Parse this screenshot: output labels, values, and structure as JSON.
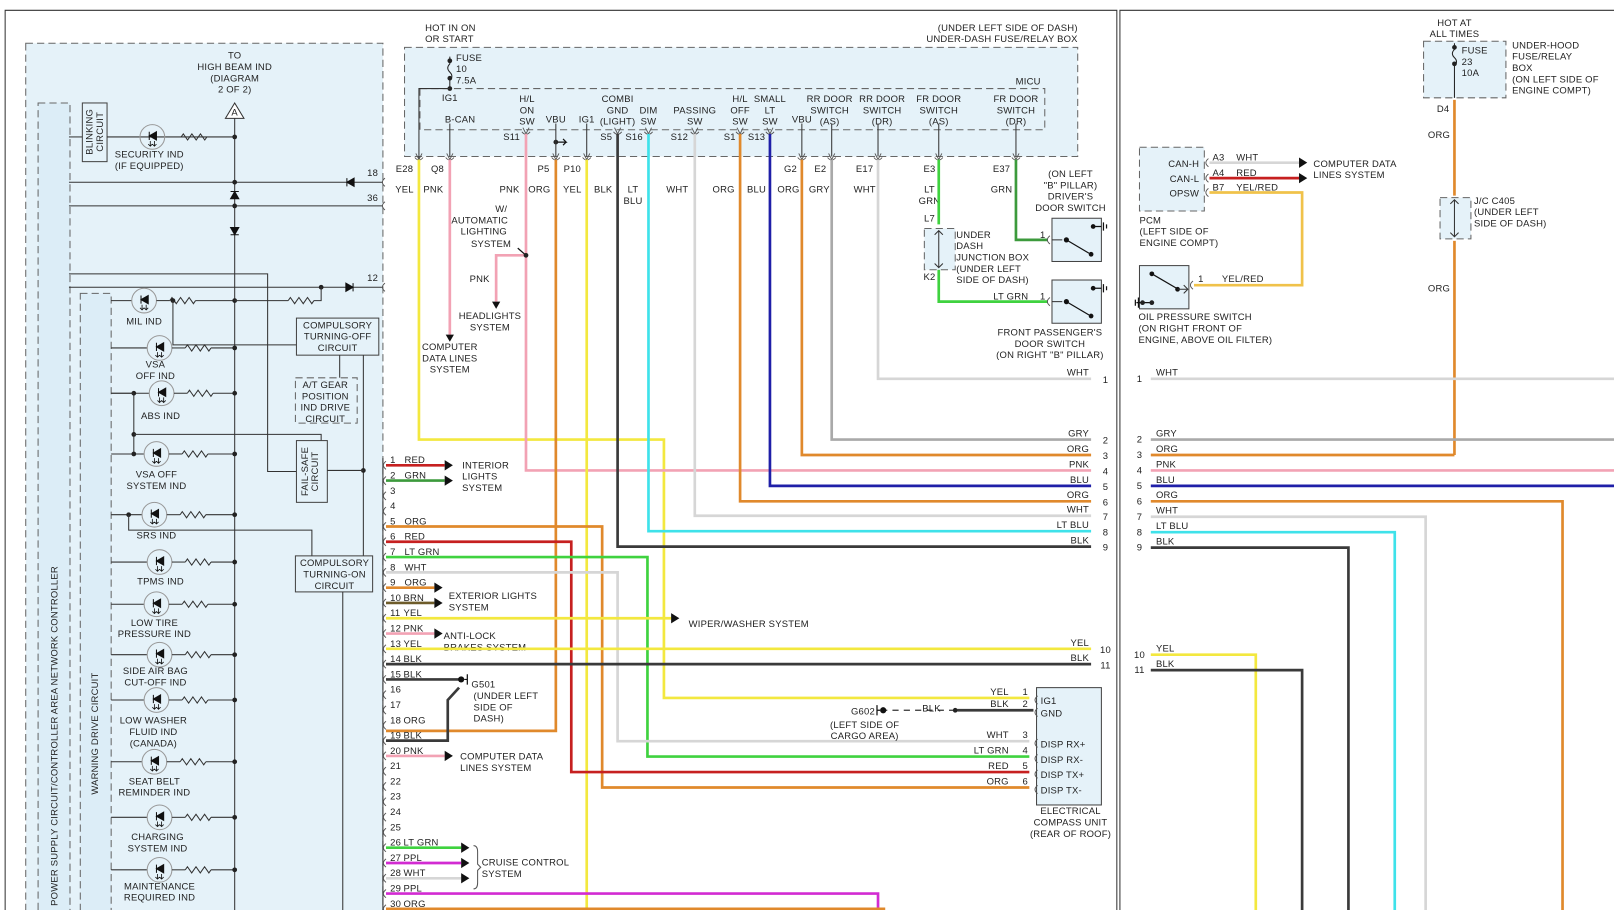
{
  "wire_colors": {
    "YEL": "#f3e83f",
    "PNK": "#f2a2b4",
    "ORG": "#e0892c",
    "BLK": "#3a3a3a",
    "LT BLU": "#3fe2ea",
    "WHT": "#d6d6d6",
    "BLU": "#1f1fa8",
    "GRY": "#a9a9a9",
    "LT GRN": "#3fd23f",
    "GRN": "#3c9a3c",
    "RED": "#c62020",
    "BRN": "#6e5c2a",
    "PPL": "#d22bd2",
    "YEL/RED": "#f0c24a"
  },
  "module_fill": "#e5f2f9",
  "left": {
    "high_beam": [
      "TO",
      "HIGH BEAM IND",
      "(DIAGRAM",
      "2 OF 2)"
    ],
    "connector_a": "A",
    "blinking": [
      "BLINKING",
      "CIRCUIT"
    ],
    "power_supply": "POWER SUPPLY CIRCUIT/CONTROLLER AREA NETWORK CONTROLLER",
    "warning_drive": "WARNING DRIVE CIRCUIT",
    "pin_18": "18",
    "pin_36": "36",
    "pin_12": "12",
    "indicators": [
      {
        "lines": [
          "SECURITY IND",
          "(IF EQUIPPED)"
        ]
      },
      {
        "lines": [
          "MIL IND"
        ]
      },
      {
        "lines": [
          "VSA",
          "OFF IND"
        ]
      },
      {
        "lines": [
          "ABS IND"
        ]
      },
      {
        "lines": [
          "VSA OFF",
          "SYSTEM IND"
        ]
      },
      {
        "lines": [
          "SRS IND"
        ]
      },
      {
        "lines": [
          "TPMS IND"
        ]
      },
      {
        "lines": [
          "LOW TIRE",
          "PRESSURE IND"
        ]
      },
      {
        "lines": [
          "SIDE AIR BAG",
          "CUT-OFF IND"
        ]
      },
      {
        "lines": [
          "LOW WASHER",
          "FLUID IND",
          "(CANADA)"
        ]
      },
      {
        "lines": [
          "SEAT BELT",
          "REMINDER IND"
        ]
      },
      {
        "lines": [
          "CHARGING",
          "SYSTEM IND"
        ]
      },
      {
        "lines": [
          "MAINTENANCE",
          "REQUIRED IND"
        ]
      }
    ],
    "compulsory_off": [
      "COMPULSORY",
      "TURNING-OFF",
      "CIRCUIT"
    ],
    "at_gear": [
      "A/T GEAR",
      "POSITION",
      "IND DRIVE",
      "CIRCUIT"
    ],
    "fail_safe": [
      "FAIL-SAFE",
      "CIRCUIT"
    ],
    "compulsory_on": [
      "COMPULSORY",
      "TURNING-ON",
      "CIRCUIT"
    ]
  },
  "micu": {
    "hot": [
      "HOT IN ON",
      "OR START"
    ],
    "location": "(UNDER LEFT SIDE OF DASH)",
    "name": "UNDER-DASH FUSE/RELAY BOX",
    "fuse": [
      "FUSE",
      "10",
      "7.5A"
    ],
    "module": "MICU",
    "terminals": [
      {
        "label": [
          "IG1"
        ],
        "conn": "E28",
        "color": "YEL"
      },
      {
        "label": [
          "B-CAN"
        ],
        "conn": "Q8",
        "color": "PNK"
      },
      {
        "label": [
          "H/L",
          "ON",
          "SW"
        ],
        "conn": "S11",
        "color": "PNK"
      },
      {
        "label": [
          "VBU"
        ],
        "conn": "P5",
        "color": "ORG"
      },
      {
        "label": [
          "IG1"
        ],
        "conn": "P10",
        "color": "YEL"
      },
      {
        "label": [
          "COMBI",
          "GND",
          "(LIGHT)"
        ],
        "conn": "S5",
        "color": "BLK"
      },
      {
        "label": [
          "DIM",
          "SW"
        ],
        "conn": "S16",
        "color": "LT BLU"
      },
      {
        "label": [
          "PASSING",
          "SW"
        ],
        "conn": "S12",
        "color": "WHT"
      },
      {
        "label": [
          "H/L",
          "OFF",
          "SW"
        ],
        "conn": "S1",
        "color": "ORG"
      },
      {
        "label": [
          "SMALL",
          "LT",
          "SW"
        ],
        "conn": "S13",
        "color": "BLU"
      },
      {
        "label": [
          "VBU"
        ],
        "conn": "G2",
        "color": "ORG"
      },
      {
        "label": [
          "RR DOOR",
          "SWITCH",
          "(AS)"
        ],
        "conn": "E2",
        "color": "GRY"
      },
      {
        "label": [
          "RR DOOR",
          "SWITCH",
          "(DR)"
        ],
        "conn": "E17",
        "color": "WHT"
      },
      {
        "label": [
          "FR DOOR",
          "SWITCH",
          "(AS)"
        ],
        "conn": "E3",
        "color": "LT GRN"
      },
      {
        "label": [
          "FR DOOR",
          "SWITCH",
          "(DR)"
        ],
        "conn": "E37",
        "color": "GRN"
      }
    ],
    "lt_blu_lines": [
      "LT",
      "BLU"
    ],
    "lt_grn_lines": [
      "LT",
      "GRN"
    ]
  },
  "auto_lighting": {
    "lines": [
      "W/",
      "AUTOMATIC",
      "LIGHTING",
      "SYSTEM"
    ],
    "branch_color": "PNK",
    "dest": [
      "HEADLIGHTS",
      "SYSTEM"
    ]
  },
  "bcan_dest": [
    "COMPUTER",
    "DATA LINES",
    "SYSTEM"
  ],
  "connector_pins": [
    {
      "pin": "1",
      "color": "RED"
    },
    {
      "pin": "2",
      "color": "GRN"
    },
    {
      "pin": "3",
      "color": ""
    },
    {
      "pin": "4",
      "color": ""
    },
    {
      "pin": "5",
      "color": "ORG"
    },
    {
      "pin": "6",
      "color": "RED"
    },
    {
      "pin": "7",
      "color": "LT GRN"
    },
    {
      "pin": "8",
      "color": "WHT"
    },
    {
      "pin": "9",
      "color": "ORG"
    },
    {
      "pin": "10",
      "color": "BRN"
    },
    {
      "pin": "11",
      "color": "YEL"
    },
    {
      "pin": "12",
      "color": "PNK"
    },
    {
      "pin": "13",
      "color": "YEL"
    },
    {
      "pin": "14",
      "color": "BLK"
    },
    {
      "pin": "15",
      "color": "BLK"
    },
    {
      "pin": "16",
      "color": ""
    },
    {
      "pin": "17",
      "color": ""
    },
    {
      "pin": "18",
      "color": "ORG"
    },
    {
      "pin": "19",
      "color": "BLK"
    },
    {
      "pin": "20",
      "color": "PNK"
    },
    {
      "pin": "21",
      "color": ""
    },
    {
      "pin": "22",
      "color": ""
    },
    {
      "pin": "23",
      "color": ""
    },
    {
      "pin": "24",
      "color": ""
    },
    {
      "pin": "25",
      "color": ""
    },
    {
      "pin": "26",
      "color": "LT GRN"
    },
    {
      "pin": "27",
      "color": "PPL"
    },
    {
      "pin": "28",
      "color": "WHT"
    },
    {
      "pin": "29",
      "color": "PPL"
    },
    {
      "pin": "30",
      "color": "ORG"
    }
  ],
  "destinations": {
    "interior_lights": [
      "INTERIOR",
      "LIGHTS",
      "SYSTEM"
    ],
    "exterior_lights": [
      "EXTERIOR LIGHTS",
      "SYSTEM"
    ],
    "wiper_washer": "WIPER/WASHER SYSTEM",
    "anti_lock": [
      "ANTI-LOCK",
      "BRAKES SYSTEM"
    ],
    "computer_data": [
      "COMPUTER DATA",
      "LINES SYSTEM"
    ],
    "cruise_control": [
      "CRUISE CONTROL",
      "SYSTEM"
    ]
  },
  "g501": {
    "name": "G501",
    "location": [
      "(UNDER LEFT",
      "SIDE OF",
      "DASH)"
    ]
  },
  "g602": {
    "name": "G602",
    "location": [
      "(LEFT SIDE OF",
      "CARGO AREA)"
    ],
    "color": "BLK"
  },
  "junction": {
    "in": "L7",
    "out": "K2",
    "lines": [
      "UNDER",
      "DASH",
      "JUNCTION BOX",
      "(UNDER LEFT",
      "SIDE OF DASH)"
    ],
    "color_out": "LT GRN"
  },
  "driver_switch": {
    "pin": "1",
    "lines": [
      "(ON LEFT",
      "\"B\" PILLAR)",
      "DRIVER'S",
      "DOOR SWITCH"
    ]
  },
  "passenger_switch": {
    "pin": "1",
    "lines": [
      "FRONT PASSENGER'S",
      "DOOR SWITCH",
      "(ON RIGHT \"B\" PILLAR)"
    ]
  },
  "compass": {
    "pins": [
      {
        "pin": "1",
        "color": "YEL",
        "label": "IG1"
      },
      {
        "pin": "2",
        "color": "BLK",
        "label": "GND"
      },
      {
        "pin": "3",
        "color": "WHT",
        "label": "DISP RX+"
      },
      {
        "pin": "4",
        "color": "LT GRN",
        "label": "DISP RX-"
      },
      {
        "pin": "5",
        "color": "RED",
        "label": "DISP TX+"
      },
      {
        "pin": "6",
        "color": "ORG",
        "label": "DISP TX-"
      }
    ],
    "name": [
      "ELECTRICAL",
      "COMPASS UNIT",
      "(REAR OF ROOF)"
    ]
  },
  "harness_out": [
    {
      "pin": "1",
      "color": "WHT"
    },
    {
      "pin": "2",
      "color": "GRY"
    },
    {
      "pin": "3",
      "color": "ORG"
    },
    {
      "pin": "4",
      "color": "PNK"
    },
    {
      "pin": "5",
      "color": "BLU"
    },
    {
      "pin": "6",
      "color": "ORG"
    },
    {
      "pin": "7",
      "color": "WHT"
    },
    {
      "pin": "8",
      "color": "LT BLU"
    },
    {
      "pin": "9",
      "color": "BLK"
    },
    {
      "pin": "10",
      "color": "YEL"
    },
    {
      "pin": "11",
      "color": "BLK"
    }
  ],
  "harness_in": [
    {
      "pin": "1",
      "color": "WHT"
    },
    {
      "pin": "2",
      "color": "GRY"
    },
    {
      "pin": "3",
      "color": "ORG"
    },
    {
      "pin": "4",
      "color": "PNK"
    },
    {
      "pin": "5",
      "color": "BLU"
    },
    {
      "pin": "6",
      "color": "ORG"
    },
    {
      "pin": "7",
      "color": "WHT"
    },
    {
      "pin": "8",
      "color": "LT BLU"
    },
    {
      "pin": "9",
      "color": "BLK"
    },
    {
      "pin": "10",
      "color": "YEL"
    },
    {
      "pin": "11",
      "color": "BLK"
    }
  ],
  "right": {
    "hot": [
      "HOT AT",
      "ALL TIMES"
    ],
    "fuse": [
      "FUSE",
      "23",
      "10A"
    ],
    "fuse_box": [
      "UNDER-HOOD",
      "FUSE/RELAY",
      "BOX",
      "(ON LEFT SIDE OF",
      "ENGINE COMPT)"
    ],
    "d4": "D4",
    "org_1": "ORG",
    "org_2": "ORG",
    "jc": [
      "J/C C405",
      "(UNDER LEFT",
      "SIDE OF DASH)"
    ],
    "pcm": {
      "pins": [
        {
          "label": "CAN-H",
          "pin": "A3",
          "color": "WHT"
        },
        {
          "label": "CAN-L",
          "pin": "A4",
          "color": "RED"
        },
        {
          "label": "OPSW",
          "pin": "B7",
          "color": "YEL/RED"
        }
      ],
      "name": [
        "PCM",
        "(LEFT SIDE OF",
        "ENGINE COMPT)"
      ],
      "dest": [
        "COMPUTER DATA",
        "LINES SYSTEM"
      ]
    },
    "oil_switch": {
      "pin": "1",
      "color": "YEL/RED",
      "name": [
        "OIL PRESSURE SWITCH",
        "(ON RIGHT FRONT OF",
        "ENGINE, ABOVE OIL FILTER)"
      ]
    }
  }
}
